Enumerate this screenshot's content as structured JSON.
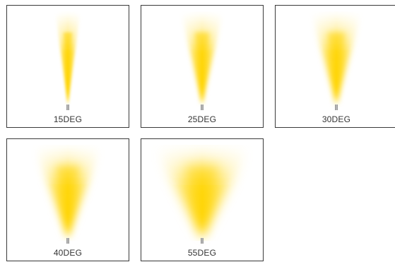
{
  "beams": [
    {
      "label": "15DEG",
      "angle": 15
    },
    {
      "label": "25DEG",
      "angle": 25
    },
    {
      "label": "30DEG",
      "angle": 30
    },
    {
      "label": "40DEG",
      "angle": 40
    },
    {
      "label": "55DEG",
      "angle": 55
    }
  ],
  "colors": {
    "beam_core": "#ffd400",
    "beam_edge": "#ffe566",
    "fixture": "#9a9a9a",
    "border": "#3a3a3a"
  }
}
